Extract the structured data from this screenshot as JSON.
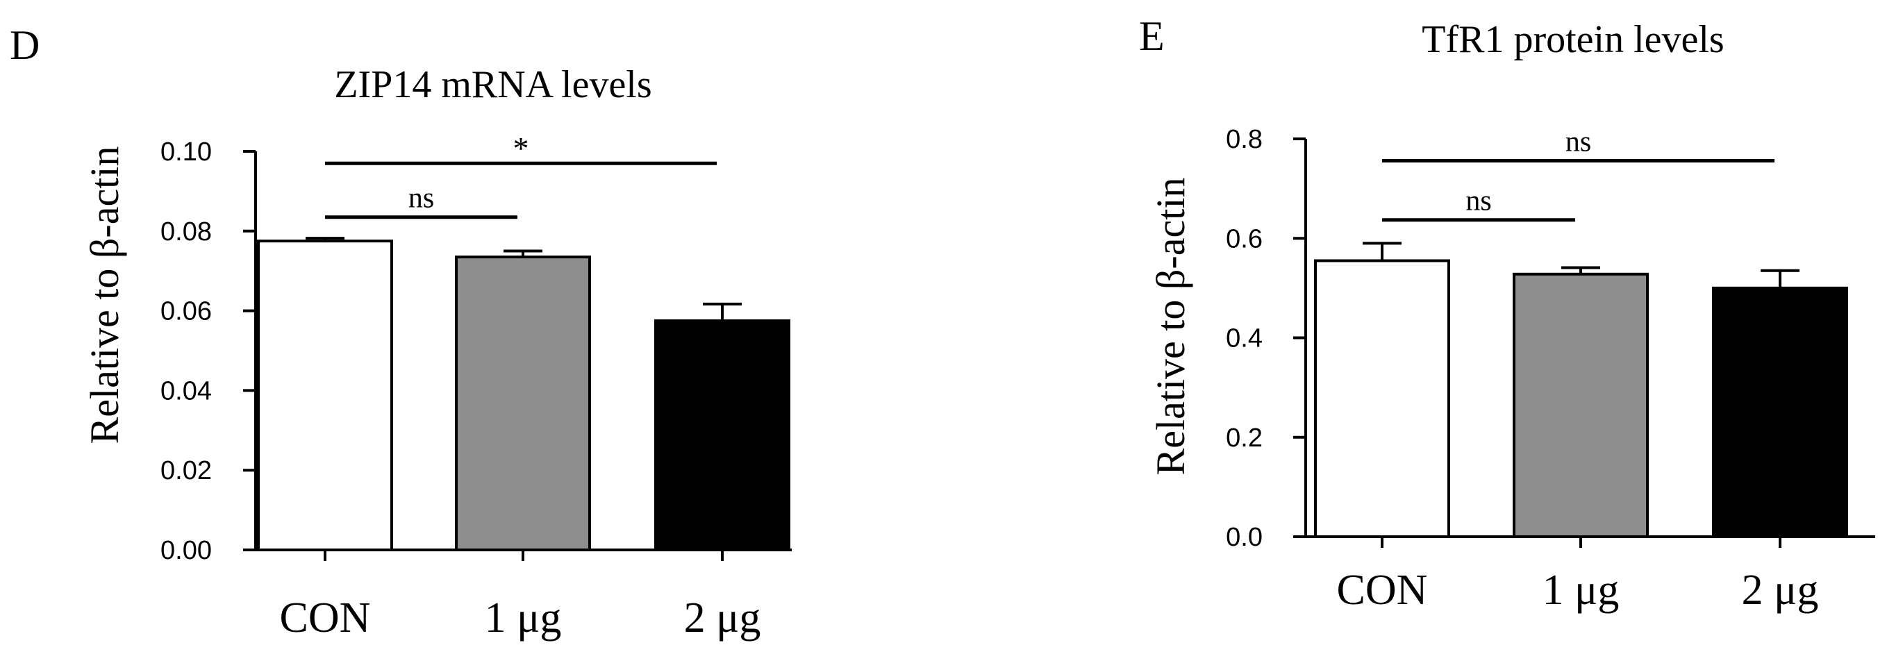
{
  "colors": {
    "bar_fills": [
      "#ffffff",
      "#8e8e8e",
      "#000000"
    ],
    "line": "#000000"
  },
  "chart_data": [
    {
      "panel_label": "D",
      "type": "bar",
      "title": "ZIP14 mRNA levels",
      "xlabel": "",
      "ylabel": "Relative to β-actin",
      "categories": [
        "CON",
        "1 μg",
        "2 μg"
      ],
      "values": [
        0.0775,
        0.0735,
        0.0575
      ],
      "errors": [
        0.0007,
        0.0015,
        0.0042
      ],
      "ylim": [
        0,
        0.1
      ],
      "yticks": [
        0,
        0.02,
        0.04,
        0.06,
        0.08,
        0.1
      ],
      "ytick_labels": [
        "0.00",
        "0.02",
        "0.04",
        "0.06",
        "0.08",
        "0.10"
      ],
      "comparisons": [
        {
          "from": "CON",
          "to": "1 μg",
          "label": "ns",
          "y": 0.0835
        },
        {
          "from": "CON",
          "to": "2 μg",
          "label": "*",
          "y": 0.097
        }
      ]
    },
    {
      "panel_label": "E",
      "type": "bar",
      "title": "TfR1 protein levels",
      "xlabel": "",
      "ylabel": "Relative to β-actin",
      "categories": [
        "CON",
        "1 μg",
        "2 μg"
      ],
      "values": [
        0.555,
        0.528,
        0.5
      ],
      "errors": [
        0.035,
        0.013,
        0.035
      ],
      "ylim": [
        0,
        0.8
      ],
      "yticks": [
        0,
        0.2,
        0.4,
        0.6,
        0.8
      ],
      "ytick_labels": [
        "0.0",
        "0.2",
        "0.4",
        "0.6",
        "0.8"
      ],
      "comparisons": [
        {
          "from": "CON",
          "to": "1 μg",
          "label": "ns",
          "y": 0.637
        },
        {
          "from": "CON",
          "to": "2 μg",
          "label": "ns",
          "y": 0.756
        }
      ]
    }
  ]
}
